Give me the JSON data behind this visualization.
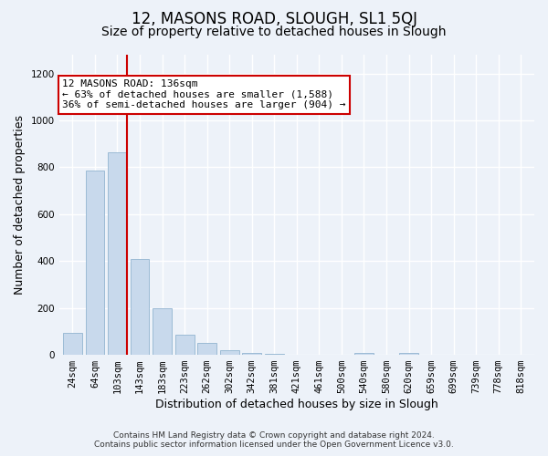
{
  "title": "12, MASONS ROAD, SLOUGH, SL1 5QJ",
  "subtitle": "Size of property relative to detached houses in Slough",
  "xlabel": "Distribution of detached houses by size in Slough",
  "ylabel": "Number of detached properties",
  "footer_line1": "Contains HM Land Registry data © Crown copyright and database right 2024.",
  "footer_line2": "Contains public sector information licensed under the Open Government Licence v3.0.",
  "bar_labels": [
    "24sqm",
    "64sqm",
    "103sqm",
    "143sqm",
    "183sqm",
    "223sqm",
    "262sqm",
    "302sqm",
    "342sqm",
    "381sqm",
    "421sqm",
    "461sqm",
    "500sqm",
    "540sqm",
    "580sqm",
    "620sqm",
    "659sqm",
    "699sqm",
    "739sqm",
    "778sqm",
    "818sqm"
  ],
  "bar_values": [
    95,
    785,
    862,
    410,
    200,
    85,
    52,
    20,
    8,
    3,
    0,
    0,
    0,
    8,
    0,
    8,
    0,
    0,
    0,
    0,
    0
  ],
  "bar_color": "#c8d9ec",
  "bar_edgecolor": "#92b4d0",
  "vline_color": "#cc0000",
  "annotation_title": "12 MASONS ROAD: 136sqm",
  "annotation_line1": "← 63% of detached houses are smaller (1,588)",
  "annotation_line2": "36% of semi-detached houses are larger (904) →",
  "annotation_box_edgecolor": "#cc0000",
  "annotation_box_facecolor": "#ffffff",
  "ylim": [
    0,
    1280
  ],
  "yticks": [
    0,
    200,
    400,
    600,
    800,
    1000,
    1200
  ],
  "background_color": "#edf2f9",
  "plot_bg_color": "#edf2f9",
  "grid_color": "#ffffff",
  "title_fontsize": 12,
  "subtitle_fontsize": 10,
  "axis_label_fontsize": 9,
  "tick_fontsize": 7.5,
  "footer_fontsize": 6.5,
  "annotation_fontsize": 8
}
